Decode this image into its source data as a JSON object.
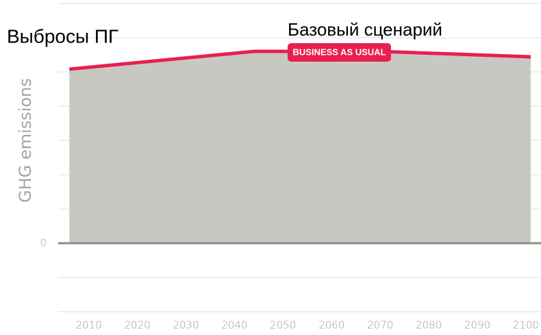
{
  "chart_data": {
    "type": "area",
    "title": "Выбросы ПГ",
    "y_label": "GHG emissions",
    "annotations": [
      "Базовый сценарий",
      "BUSINESS AS USUAL"
    ],
    "x": [
      2006,
      2044,
      2070,
      2101
    ],
    "values": [
      5.08,
      5.6,
      5.6,
      5.44
    ],
    "line_color": "#e8204f",
    "area_color": "#c8c8c3",
    "xlim": [
      2003.7,
      2103.1
    ],
    "xticks": [
      2010,
      2020,
      2030,
      2040,
      2050,
      2060,
      2070,
      2080,
      2090,
      2100
    ],
    "ylim": [
      -2.68,
      7.1
    ],
    "yticks": [
      0
    ],
    "ygrid": [
      -2,
      -1,
      1,
      2,
      3,
      4,
      5,
      6,
      7
    ],
    "grid": true
  }
}
